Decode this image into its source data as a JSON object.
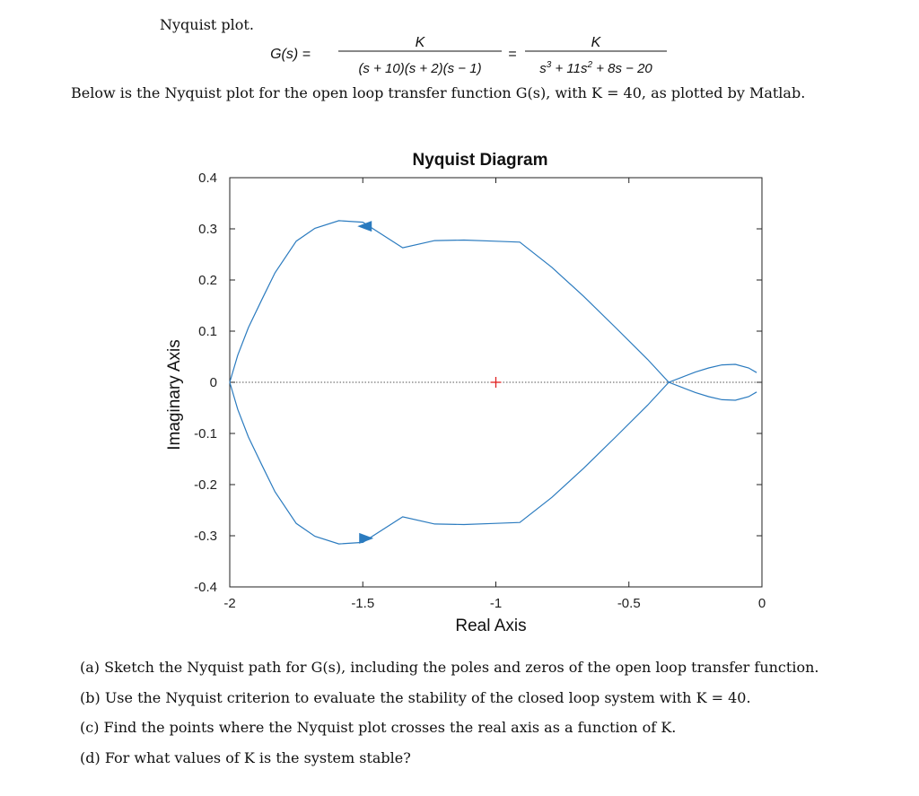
{
  "doc": {
    "heading": "Nyquist plot.",
    "equation": {
      "lhs": "G(s) =",
      "num1": "K",
      "den1": "(s + 10)(s + 2)(s − 1)",
      "equals": "=",
      "num2": "K",
      "den2_a": "s",
      "den2_a_exp": "3",
      "den2_b": " + 11s",
      "den2_b_exp": "2",
      "den2_c": " + 8s − 20"
    },
    "intro": "Below is the Nyquist plot for the open loop transfer function G(s), with K = 40, as plotted by Matlab.",
    "questions": [
      "(a)  Sketch the Nyquist path for G(s), including the poles and zeros of the open loop transfer function.",
      "(b)  Use the Nyquist criterion to evaluate the stability of the closed loop system with K = 40.",
      "(c)  Find the points where the Nyquist plot crosses the real axis as a function of K.",
      "(d)  For what values of K is the system stable?"
    ]
  },
  "chart_data": {
    "type": "line",
    "title": "Nyquist Diagram",
    "xlabel": "Real Axis",
    "ylabel": "Imaginary Axis",
    "xlim": [
      -2,
      0
    ],
    "ylim": [
      -0.4,
      0.4
    ],
    "xticks": [
      -2,
      -1.5,
      -1,
      -0.5,
      0
    ],
    "xtick_labels": [
      "-2",
      "-1.5",
      "-1",
      "-0.5",
      "0"
    ],
    "yticks": [
      0.4,
      0.3,
      0.2,
      0.1,
      0,
      -0.1,
      -0.2,
      -0.3,
      -0.4
    ],
    "ytick_labels": [
      "0.4",
      "0.3",
      "0.2",
      "0.1",
      "0",
      "-0.1",
      "-0.2",
      "-0.3",
      "-0.4"
    ],
    "critical_point": [
      -1,
      0
    ],
    "curve_color": "#2b7bbf",
    "critical_point_color": "#e02020",
    "series": [
      {
        "x": [
          -0.02,
          -0.05,
          -0.1,
          -0.15,
          -0.2,
          -0.25,
          -0.3,
          -0.35,
          -0.43,
          -0.55,
          -0.67,
          -0.79,
          -0.91,
          -1.01,
          -1.12,
          -1.23,
          -1.35,
          -1.5,
          -1.59,
          -1.68,
          -1.75,
          -1.83,
          -1.88,
          -1.93,
          -1.97,
          -2.0
        ],
        "y": [
          0.019,
          0.028,
          0.035,
          0.034,
          0.028,
          0.02,
          0.01,
          0.0,
          -0.045,
          -0.107,
          -0.168,
          -0.225,
          -0.274,
          -0.276,
          -0.278,
          -0.277,
          -0.263,
          -0.313,
          -0.316,
          -0.301,
          -0.276,
          -0.214,
          -0.161,
          -0.107,
          -0.053,
          0.0
        ]
      }
    ]
  }
}
